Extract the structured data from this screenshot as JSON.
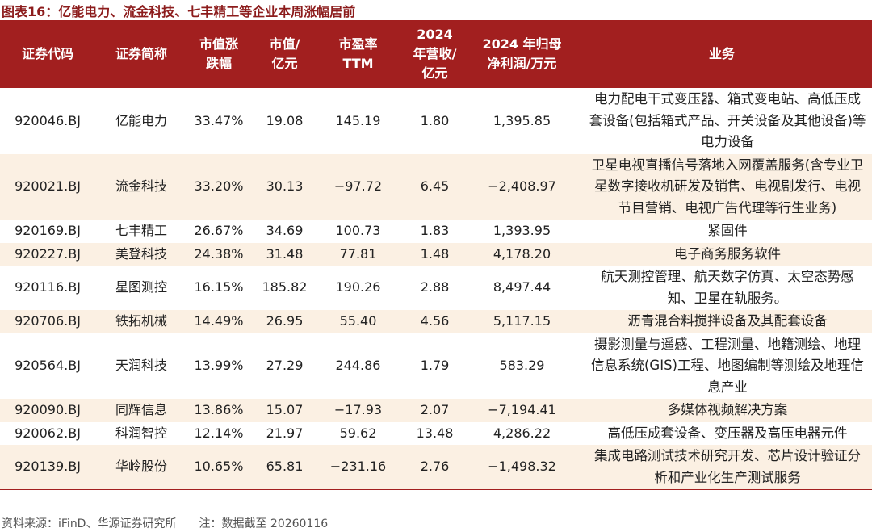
{
  "title": "图表16：亿能电力、流金科技、七丰精工等企业本周涨幅居前",
  "table": {
    "header": [
      "证券代码",
      "证券简称",
      "市值涨\n跌幅",
      "市值/\n亿元",
      "市盈率\nTTM",
      "2024\n年营收/\n亿元",
      "2024 年归母\n净利润/万元",
      "业务"
    ],
    "rows": [
      [
        "920046.BJ",
        "亿能电力",
        "33.47%",
        "19.08",
        "145.19",
        "1.80",
        "1,395.85",
        "电力配电干式变压器、箱式变电站、高低压成套设备(包括箱式产品、开关设备及其他设备)等电力设备"
      ],
      [
        "920021.BJ",
        "流金科技",
        "33.20%",
        "30.13",
        "−97.72",
        "6.45",
        "−2,408.97",
        "卫星电视直播信号落地入网覆盖服务(含专业卫星数字接收机研发及销售、电视剧发行、电视节目营销、电视广告代理等行生业务)"
      ],
      [
        "920169.BJ",
        "七丰精工",
        "26.67%",
        "34.69",
        "100.73",
        "1.83",
        "1,393.95",
        "紧固件"
      ],
      [
        "920227.BJ",
        "美登科技",
        "24.38%",
        "31.48",
        "77.81",
        "1.48",
        "4,178.20",
        "电子商务服务软件"
      ],
      [
        "920116.BJ",
        "星图测控",
        "16.15%",
        "185.82",
        "190.26",
        "2.88",
        "8,497.44",
        "航天测控管理、航天数字仿真、太空态势感知、卫星在轨服务。"
      ],
      [
        "920706.BJ",
        "铁拓机械",
        "14.49%",
        "26.95",
        "55.40",
        "4.56",
        "5,117.15",
        "沥青混合料搅拌设备及其配套设备"
      ],
      [
        "920564.BJ",
        "天润科技",
        "13.99%",
        "27.29",
        "244.86",
        "1.79",
        "583.29",
        "摄影测量与遥感、工程测量、地籍测绘、地理信息系统(GIS)工程、地图编制等测绘及地理信息产业"
      ],
      [
        "920090.BJ",
        "同辉信息",
        "13.86%",
        "15.07",
        "−17.93",
        "2.07",
        "−7,194.41",
        "多媒体视频解决方案"
      ],
      [
        "920062.BJ",
        "科润智控",
        "12.14%",
        "21.97",
        "59.62",
        "13.48",
        "4,286.22",
        "高低压成套设备、变压器及高压电器元件"
      ],
      [
        "920139.BJ",
        "华岭股份",
        "10.65%",
        "65.81",
        "−231.16",
        "2.76",
        "−1,498.32",
        "集成电路测试技术研究开发、芯片设计验证分析和产业化生产测试服务"
      ]
    ]
  },
  "footer": "资料来源：iFinD、华源证券研究所　　注：数据截至 20260116"
}
